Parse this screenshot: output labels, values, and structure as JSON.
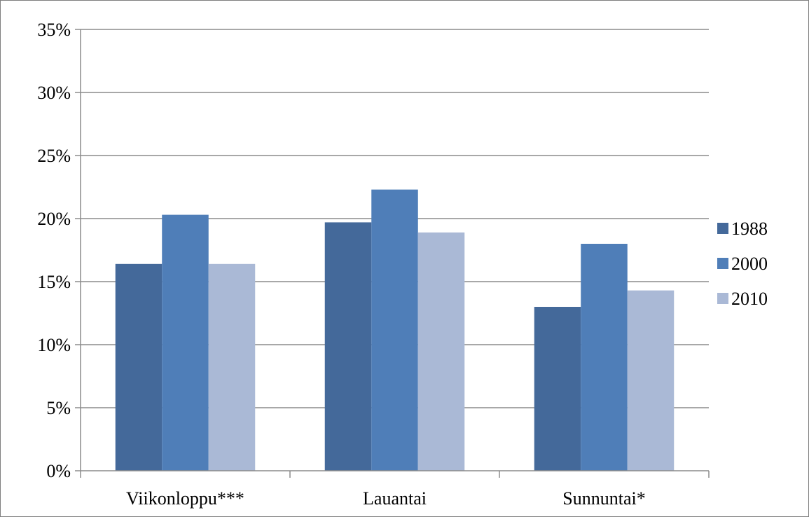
{
  "chart_data": {
    "type": "bar",
    "categories": [
      "Viikonloppu***",
      "Lauantai",
      "Sunnuntai*"
    ],
    "series": [
      {
        "name": "1988",
        "values": [
          16.4,
          19.7,
          13.0
        ],
        "color": "#44699A"
      },
      {
        "name": "2000",
        "values": [
          20.3,
          22.3,
          18.0
        ],
        "color": "#4F7EB8"
      },
      {
        "name": "2010",
        "values": [
          16.4,
          18.9,
          14.3
        ],
        "color": "#AAB9D6"
      }
    ],
    "ylim": [
      0,
      35
    ],
    "y_ticks": [
      0,
      5,
      10,
      15,
      20,
      25,
      30,
      35
    ],
    "y_tick_labels": [
      "0%",
      "5%",
      "10%",
      "15%",
      "20%",
      "25%",
      "30%",
      "35%"
    ],
    "grid": true,
    "legend_position": "right"
  }
}
